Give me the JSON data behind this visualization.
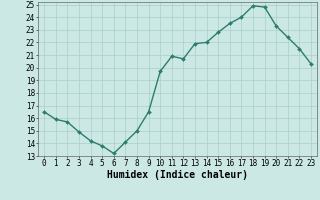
{
  "x": [
    0,
    1,
    2,
    3,
    4,
    5,
    6,
    7,
    8,
    9,
    10,
    11,
    12,
    13,
    14,
    15,
    16,
    17,
    18,
    19,
    20,
    21,
    22,
    23
  ],
  "y": [
    16.5,
    15.9,
    15.7,
    14.9,
    14.2,
    13.8,
    13.2,
    14.1,
    15.0,
    16.5,
    19.7,
    20.9,
    20.7,
    21.9,
    22.0,
    22.8,
    23.5,
    24.0,
    24.9,
    24.8,
    23.3,
    22.4,
    21.5,
    20.3
  ],
  "line_color": "#2d7d6e",
  "marker": "D",
  "marker_size": 2.0,
  "line_width": 1.0,
  "bg_color": "#cce8e4",
  "grid_color": "#aacfcb",
  "xlabel": "Humidex (Indice chaleur)",
  "xlim": [
    -0.5,
    23.5
  ],
  "ylim": [
    13,
    25.2
  ],
  "xticks": [
    0,
    1,
    2,
    3,
    4,
    5,
    6,
    7,
    8,
    9,
    10,
    11,
    12,
    13,
    14,
    15,
    16,
    17,
    18,
    19,
    20,
    21,
    22,
    23
  ],
  "yticks": [
    13,
    14,
    15,
    16,
    17,
    18,
    19,
    20,
    21,
    22,
    23,
    24,
    25
  ],
  "tick_fontsize": 5.5,
  "xlabel_fontsize": 7.0,
  "spine_color": "#666666"
}
